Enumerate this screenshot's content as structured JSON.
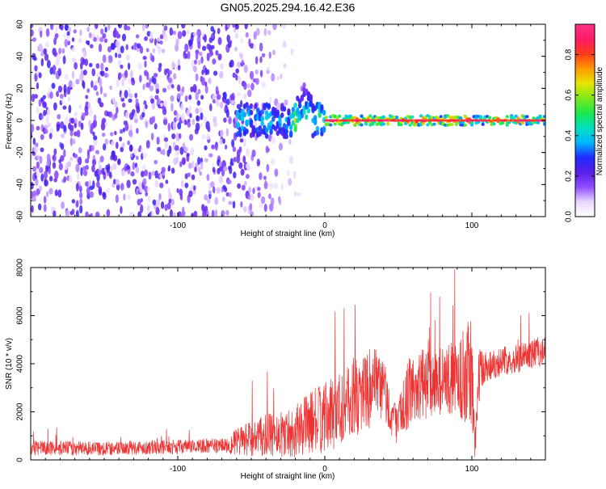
{
  "title": "GN05.2025.294.16.42.E36",
  "chart_data": [
    {
      "type": "heatmap",
      "xlabel": "Height of straight line (km)",
      "ylabel": "Frequency (Hz)",
      "xlim": [
        -200,
        150
      ],
      "ylim": [
        -60,
        60
      ],
      "x_ticks": [
        -100,
        0,
        100
      ],
      "y_ticks": [
        -60,
        -40,
        -20,
        0,
        20,
        40,
        60
      ],
      "colorbar": {
        "label": "Normalized spectral amplitude",
        "range": [
          0,
          0.95
        ],
        "ticks": [
          0.0,
          0.2,
          0.4,
          0.6,
          0.8
        ],
        "colors": [
          "#ffffff",
          "#e9d6ff",
          "#8f4dff",
          "#5a1fe6",
          "#1f2bff",
          "#00b7ff",
          "#00e0c0",
          "#19e84a",
          "#7fe81a",
          "#e6e600",
          "#ff9900",
          "#ff3b1a",
          "#ff1a66",
          "#ff3388"
        ]
      },
      "features": {
        "noise_region_x": [
          -200,
          -60
        ],
        "signal_band_center_hz": 0,
        "signal_band_halfwidth_hz": 3,
        "spike_peak_x": -14,
        "spike_peak_hz": 15
      }
    },
    {
      "type": "line",
      "xlabel": "Height of straight line (km)",
      "ylabel": "SNR (10 * v/v)",
      "xlim": [
        -200,
        150
      ],
      "ylim": [
        0,
        8000
      ],
      "x_ticks": [
        -100,
        0,
        100
      ],
      "y_ticks": [
        0,
        2000,
        4000,
        6000,
        8000
      ],
      "series_color": "#ee3333",
      "envelope": {
        "x": [
          -200,
          -150,
          -100,
          -70,
          -55,
          -40,
          -20,
          -10,
          0,
          10,
          20,
          30,
          40,
          45,
          50,
          55,
          60,
          70,
          80,
          90,
          95,
          100,
          102,
          105,
          110,
          120,
          130,
          140,
          150
        ],
        "mean": [
          500,
          480,
          550,
          600,
          800,
          1000,
          1200,
          1600,
          1700,
          2200,
          2600,
          3000,
          3000,
          1800,
          1500,
          2600,
          3000,
          3200,
          3300,
          3400,
          3500,
          3600,
          500,
          3600,
          3900,
          4100,
          4200,
          4400,
          4600
        ],
        "amp": [
          300,
          300,
          300,
          300,
          700,
          900,
          1100,
          1300,
          1500,
          1600,
          1700,
          1700,
          1500,
          800,
          900,
          1400,
          1500,
          1500,
          1400,
          1600,
          2000,
          2500,
          600,
          1200,
          700,
          600,
          600,
          600,
          700
        ]
      }
    }
  ]
}
